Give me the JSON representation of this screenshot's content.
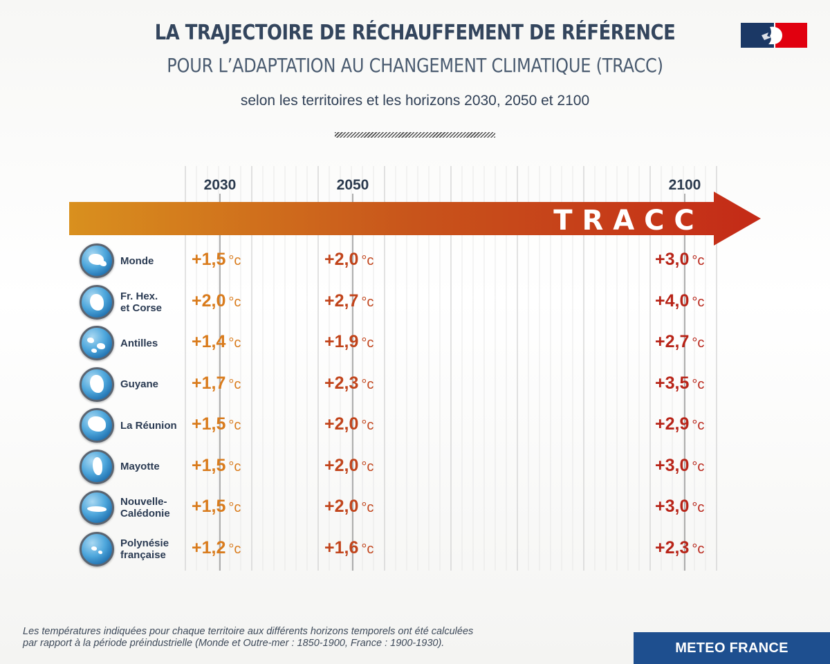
{
  "header": {
    "title_line1": "LA TRAJECTOIRE DE RÉCHAUFFEMENT DE RÉFÉRENCE",
    "title_line2": "POUR L’ADAPTATION AU CHANGEMENT CLIMATIQUE (TRACC)",
    "subtitle": "selon les territoires et les horizons 2030, 2050 et 2100"
  },
  "chart_data": {
    "type": "table",
    "arrow_label": "T R A C C",
    "unit": "°c",
    "columns": [
      "2030",
      "2050",
      "2100"
    ],
    "rows": [
      {
        "label": "Monde",
        "icon": "globe-world-icon",
        "values": [
          "+1,5",
          "+2,0",
          "+3,0"
        ]
      },
      {
        "label": "Fr. Hex.\net Corse",
        "icon": "france-map-icon",
        "values": [
          "+2,0",
          "+2,7",
          "+4,0"
        ]
      },
      {
        "label": "Antilles",
        "icon": "antilles-map-icon",
        "values": [
          "+1,4",
          "+1,9",
          "+2,7"
        ]
      },
      {
        "label": "Guyane",
        "icon": "guyane-map-icon",
        "values": [
          "+1,7",
          "+2,3",
          "+3,5"
        ]
      },
      {
        "label": "La Réunion",
        "icon": "reunion-map-icon",
        "values": [
          "+1,5",
          "+2,0",
          "+2,9"
        ]
      },
      {
        "label": "Mayotte",
        "icon": "mayotte-map-icon",
        "values": [
          "+1,5",
          "+2,0",
          "+3,0"
        ]
      },
      {
        "label": "Nouvelle-\nCalédonie",
        "icon": "nouvelle-caledonie-map-icon",
        "values": [
          "+1,5",
          "+2,0",
          "+3,0"
        ]
      },
      {
        "label": "Polynésie\nfrançaise",
        "icon": "polynesie-map-icon",
        "values": [
          "+1,2",
          "+1,6",
          "+2,3"
        ]
      }
    ],
    "column_colors": [
      "#d97b1c",
      "#c1441b",
      "#b82418"
    ],
    "arrow_gradient": [
      "#d9901e",
      "#c8541b",
      "#c42a17"
    ]
  },
  "footnote": {
    "line1": "Les températures indiquées pour chaque territoire aux différents horizons temporels ont été calculées",
    "line2": "par rapport à la période préindustrielle (Monde et Outre-mer : 1850-1900, France : 1900-1930)."
  },
  "brand": {
    "meteo_france": "METEO FRANCE"
  }
}
